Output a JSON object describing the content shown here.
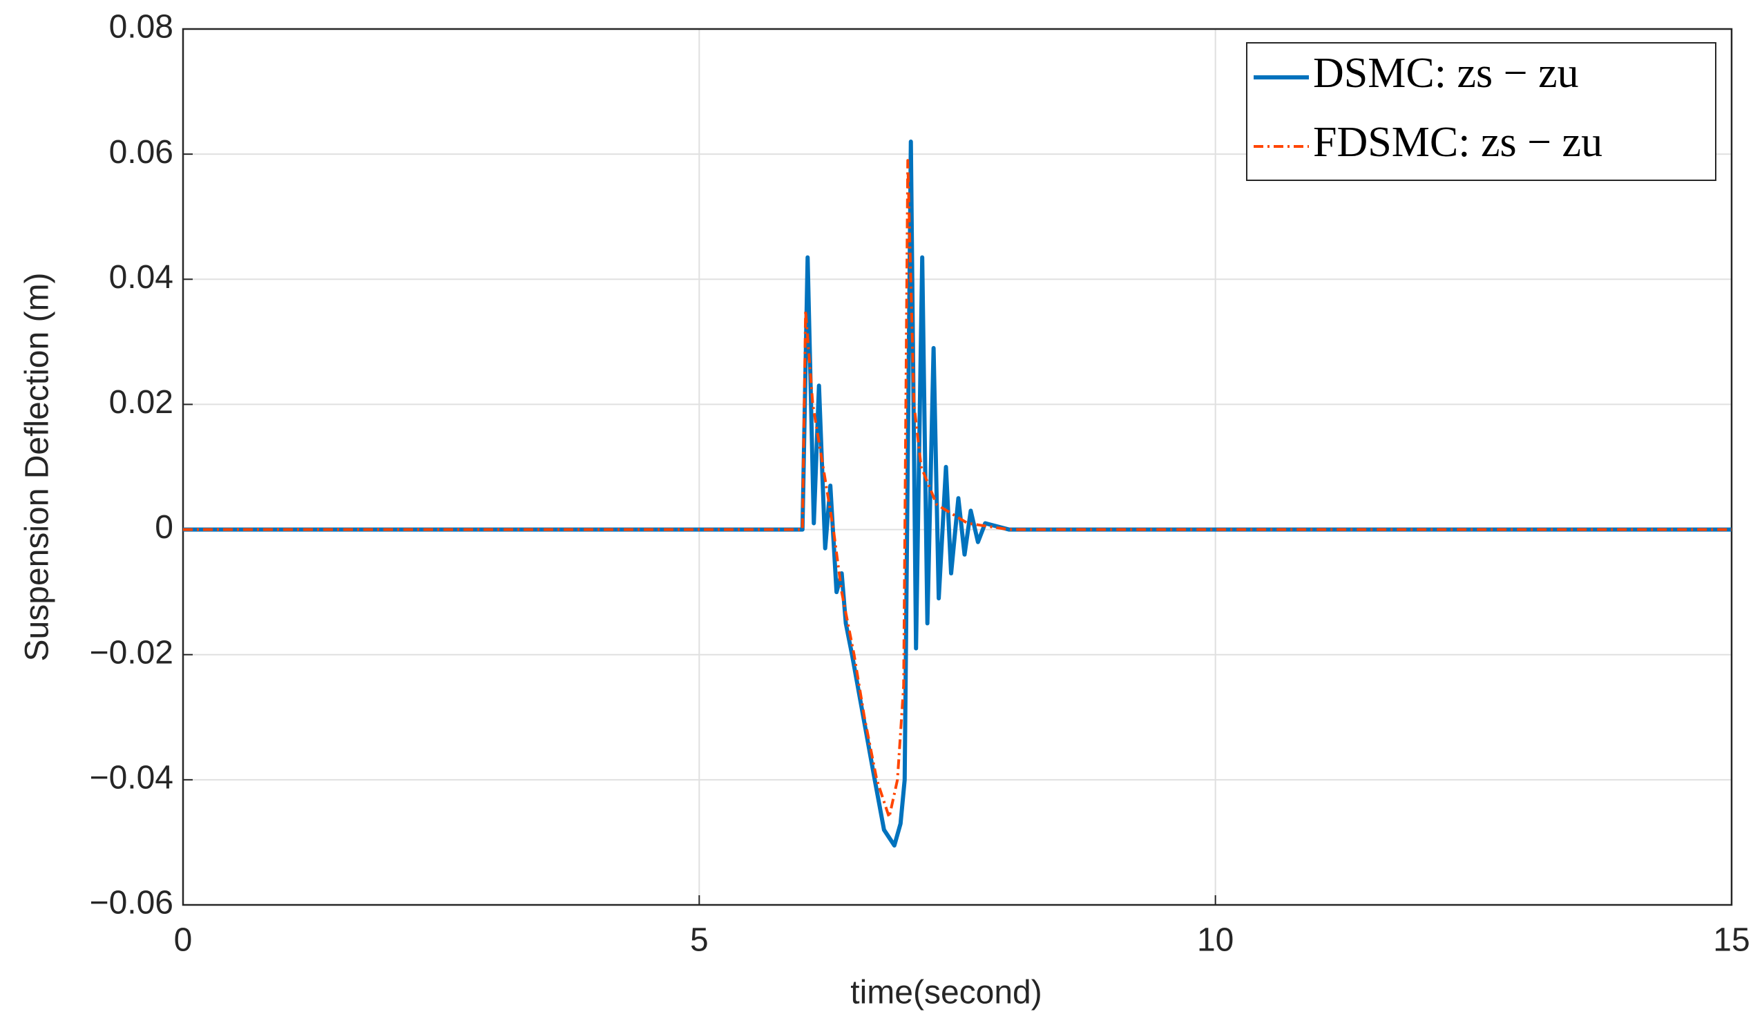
{
  "chart_data": {
    "type": "line",
    "xlabel": "time(second)",
    "ylabel": "Suspension Deflection (m)",
    "xlim": [
      0,
      15
    ],
    "xticks": [
      0,
      5,
      10,
      15
    ],
    "ylim": [
      -0.06,
      0.08
    ],
    "yticks": [
      {
        "value": -0.06,
        "label": "−0.06"
      },
      {
        "value": -0.04,
        "label": "−0.04"
      },
      {
        "value": -0.02,
        "label": "−0.02"
      },
      0,
      0.02,
      0.04,
      0.06,
      0.08
    ],
    "grid": true,
    "legend": "upper right",
    "series": [
      {
        "name": "DSMC: zs − zu",
        "color": "#0072bd",
        "style": "solid",
        "x": [
          0,
          6.0,
          6.05,
          6.11,
          6.16,
          6.22,
          6.27,
          6.33,
          6.38,
          6.42,
          6.48,
          6.59,
          6.7,
          6.79,
          6.89,
          6.95,
          6.99,
          7.05,
          7.1,
          7.16,
          7.21,
          7.27,
          7.32,
          7.39,
          7.44,
          7.51,
          7.57,
          7.63,
          7.7,
          7.77,
          8.0,
          15
        ],
        "values": [
          0,
          0,
          0.0435,
          0.001,
          0.023,
          -0.003,
          0.007,
          -0.01,
          -0.007,
          -0.015,
          -0.02,
          -0.03,
          -0.04,
          -0.048,
          -0.0505,
          -0.047,
          -0.04,
          0.062,
          -0.019,
          0.0435,
          -0.015,
          0.029,
          -0.011,
          0.01,
          -0.007,
          0.005,
          -0.004,
          0.003,
          -0.002,
          0.001,
          0,
          0
        ]
      },
      {
        "name": "FDSMC: zs − zu",
        "color": "#ff4500",
        "style": "dash-dot",
        "x": [
          0,
          6.0,
          6.03,
          6.1,
          6.2,
          6.3,
          6.38,
          6.5,
          6.6,
          6.72,
          6.84,
          6.92,
          6.98,
          7.02,
          7.08,
          7.15,
          7.3,
          7.6,
          8.0,
          15
        ],
        "values": [
          0,
          0,
          0.035,
          0.02,
          0.01,
          0,
          -0.01,
          -0.02,
          -0.03,
          -0.04,
          -0.046,
          -0.04,
          -0.025,
          0.059,
          0.02,
          0.01,
          0.004,
          0.001,
          0,
          0
        ]
      }
    ]
  }
}
